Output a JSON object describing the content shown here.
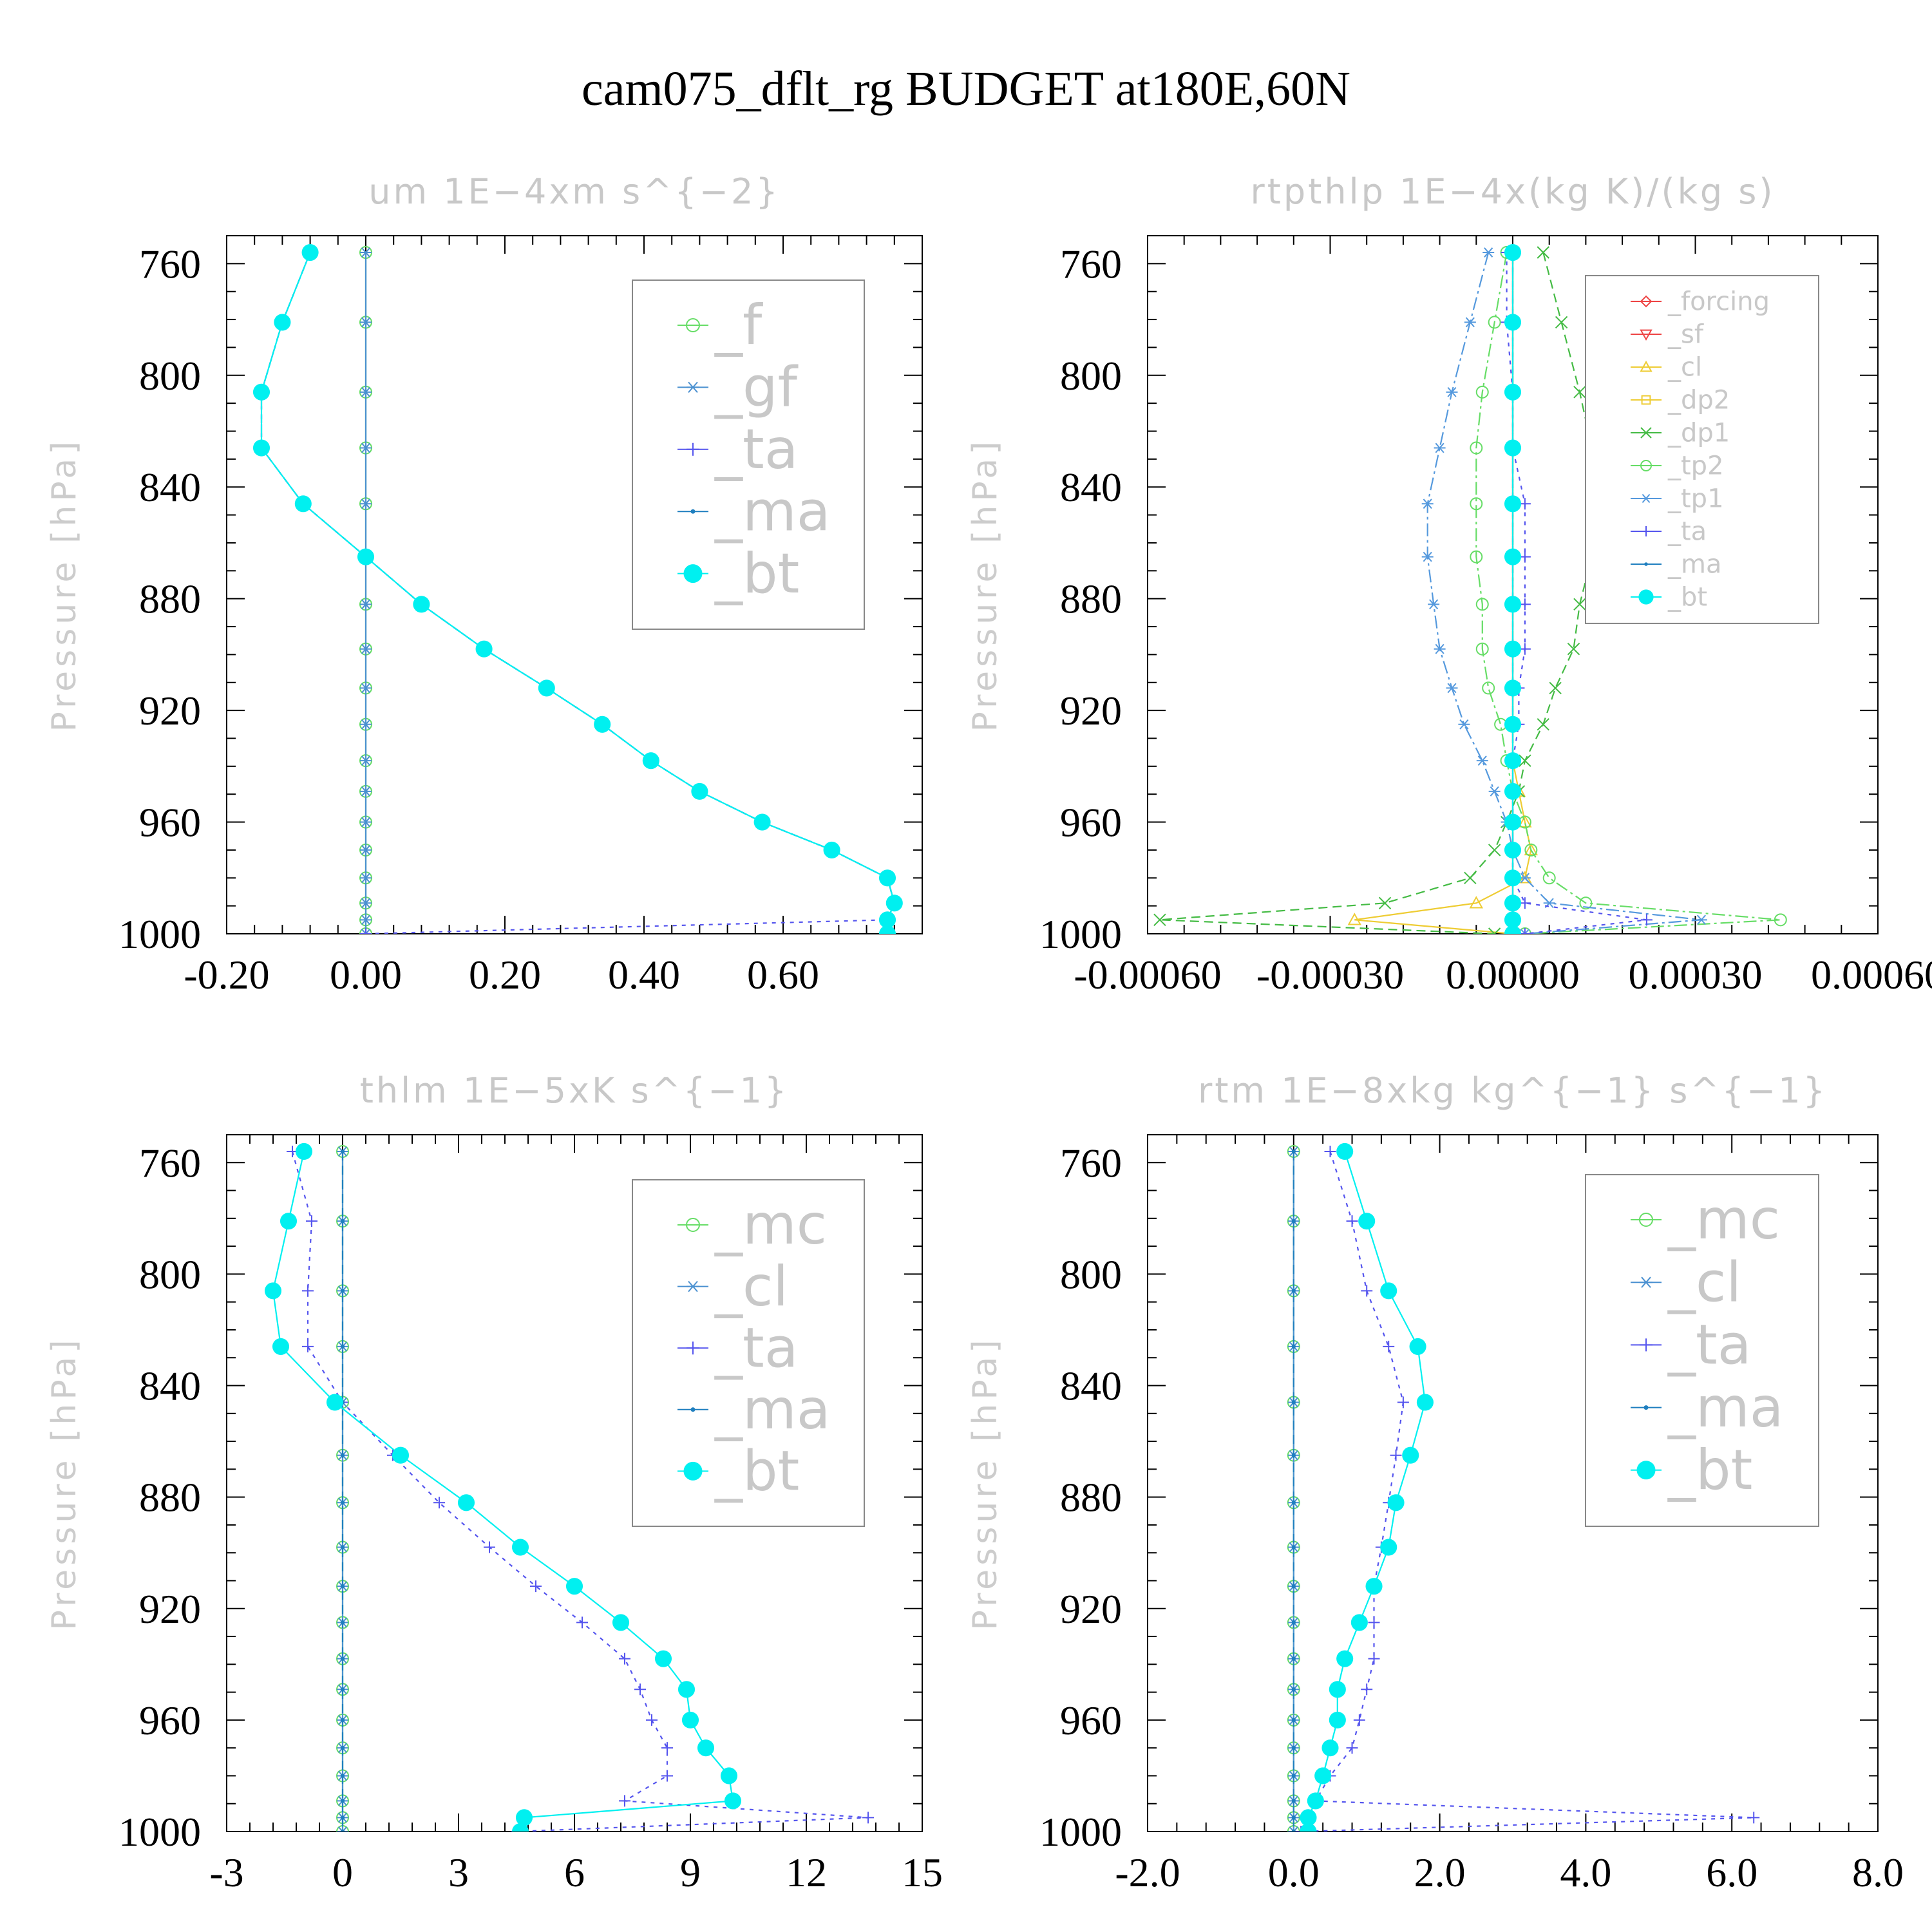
{
  "title": "cam075_dflt_rg  BUDGET at180E,60N",
  "colors": {
    "green": "#66dd66",
    "gf": "#4a90d0",
    "ta": "#5555ee",
    "ma": "#1f7fbf",
    "bt": "#00f0f0",
    "forcing": "#ee4444",
    "sf": "#ee4444",
    "cl_yellow": "#eecc33",
    "dp2": "#eecc33",
    "dp1": "#44bb44",
    "tp2": "#66dd66",
    "tp1": "#5599dd"
  },
  "chart_data": [
    {
      "type": "line",
      "title": "um   1E−4xm s^{−2}",
      "ylabel": "Pressure [hPa]",
      "xlim": [
        -0.2,
        0.8
      ],
      "ylim": [
        750,
        1000
      ],
      "y_reversed": true,
      "xticks": [
        -0.2,
        0.0,
        0.2,
        0.4,
        0.6
      ],
      "xtick_labels": [
        "-0.20",
        "0.00",
        "0.20",
        "0.40",
        "0.60"
      ],
      "yticks": [
        760,
        800,
        840,
        880,
        920,
        960,
        1000
      ],
      "legend": "top-right",
      "legend_size": "large",
      "pressure": [
        756,
        781,
        806,
        826,
        846,
        865,
        882,
        898,
        912,
        925,
        938,
        949,
        960,
        970,
        980,
        989,
        995,
        1000
      ],
      "series": [
        {
          "name": "_f",
          "color_key": "green",
          "marker": "circle-open",
          "dash": "",
          "values": [
            0,
            0,
            0,
            0,
            0,
            0,
            0,
            0,
            0,
            0,
            0,
            0,
            0,
            0,
            0,
            0,
            0,
            0
          ]
        },
        {
          "name": "_gf",
          "color_key": "gf",
          "marker": "star",
          "dash": "",
          "values": [
            0,
            0,
            0,
            0,
            0,
            0,
            0,
            0,
            0,
            0,
            0,
            0,
            0,
            0,
            0,
            0,
            0,
            0
          ]
        },
        {
          "name": "_ta",
          "color_key": "ta",
          "marker": "plus",
          "dash": "6,8",
          "values": [
            -0.08,
            -0.12,
            -0.15,
            -0.15,
            -0.09,
            0.0,
            0.08,
            0.17,
            0.26,
            0.34,
            0.41,
            0.48,
            0.57,
            0.67,
            0.75,
            0.76,
            0.75,
            0.0
          ]
        },
        {
          "name": "_ma",
          "color_key": "ma",
          "marker": "dot",
          "dash": "14,8",
          "values": [
            -0.08,
            -0.12,
            -0.15,
            -0.15,
            -0.09,
            0.0,
            0.08,
            0.17,
            0.26,
            0.34,
            0.41,
            0.48,
            0.57,
            0.67,
            0.75,
            0.76,
            0.75,
            0.75
          ]
        },
        {
          "name": "_bt",
          "color_key": "bt",
          "marker": "filled",
          "dash": "",
          "values": [
            -0.08,
            -0.12,
            -0.15,
            -0.15,
            -0.09,
            0.0,
            0.08,
            0.17,
            0.26,
            0.34,
            0.41,
            0.48,
            0.57,
            0.67,
            0.75,
            0.76,
            0.75,
            0.75
          ]
        }
      ]
    },
    {
      "type": "line",
      "title": "rtpthlp   1E−4x(kg K)/(kg s)",
      "ylabel": "Pressure [hPa]",
      "xlim": [
        -0.0006,
        0.0006
      ],
      "ylim": [
        750,
        1000
      ],
      "y_reversed": true,
      "xticks": [
        -0.0006,
        -0.0003,
        0.0,
        0.0003,
        0.0006
      ],
      "xtick_labels": [
        "-0.00060",
        "-0.00030",
        "0.00000",
        "0.00030",
        "0.00060"
      ],
      "yticks": [
        760,
        800,
        840,
        880,
        920,
        960,
        1000
      ],
      "legend": "top-right",
      "legend_size": "small",
      "pressure": [
        756,
        781,
        806,
        826,
        846,
        865,
        882,
        898,
        912,
        925,
        938,
        949,
        960,
        970,
        980,
        989,
        995,
        1000
      ],
      "series": [
        {
          "name": "_forcing",
          "color_key": "forcing",
          "marker": "diamond",
          "dash": "",
          "values": [
            0,
            0,
            0,
            0,
            0,
            0,
            0,
            0,
            0,
            0,
            0,
            0,
            0,
            0,
            0,
            0,
            0,
            0
          ]
        },
        {
          "name": "_sf",
          "color_key": "sf",
          "marker": "triangle-down",
          "dash": "6,6",
          "values": [
            0,
            0,
            0,
            0,
            0,
            0,
            0,
            0,
            0,
            0,
            0,
            0,
            0,
            0,
            0,
            0,
            0,
            0
          ]
        },
        {
          "name": "_cl",
          "color_key": "cl_yellow",
          "marker": "triangle",
          "dash": "",
          "values": [
            0,
            0,
            0,
            0,
            0,
            0,
            0,
            0,
            0,
            0,
            0,
            1e-05,
            2e-05,
            3e-05,
            2e-05,
            -6e-05,
            -0.00026,
            0
          ]
        },
        {
          "name": "_dp2",
          "color_key": "dp2",
          "marker": "square",
          "dash": "6,8",
          "values": [
            0,
            0,
            0,
            0,
            0,
            0,
            0,
            0,
            0,
            0,
            0,
            0,
            0,
            0,
            0,
            0,
            0,
            0
          ]
        },
        {
          "name": "_dp1",
          "color_key": "dp1",
          "marker": "x",
          "dash": "14,8",
          "values": [
            5e-05,
            8e-05,
            0.00011,
            0.00013,
            0.00015,
            0.00013,
            0.00011,
            0.0001,
            7e-05,
            5e-05,
            2e-05,
            1e-05,
            -1e-05,
            -3e-05,
            -7e-05,
            -0.00021,
            -0.00058,
            -3e-05
          ]
        },
        {
          "name": "_tp2",
          "color_key": "tp2",
          "marker": "circle-open",
          "dash": "20,6,4,6",
          "values": [
            -1e-05,
            -3e-05,
            -5e-05,
            -6e-05,
            -6e-05,
            -6e-05,
            -5e-05,
            -5e-05,
            -4e-05,
            -2e-05,
            -1e-05,
            0,
            2e-05,
            3e-05,
            6e-05,
            0.00012,
            0.00044,
            2e-05
          ]
        },
        {
          "name": "_tp1",
          "color_key": "tp1",
          "marker": "star",
          "dash": "20,6,4,6",
          "values": [
            -4e-05,
            -7e-05,
            -0.0001,
            -0.00012,
            -0.00014,
            -0.00014,
            -0.00013,
            -0.00012,
            -0.0001,
            -8e-05,
            -5e-05,
            -3e-05,
            -1e-05,
            0,
            2e-05,
            6e-05,
            0.00031,
            2e-05
          ]
        },
        {
          "name": "_ta",
          "color_key": "ta",
          "marker": "plus",
          "dash": "6,8",
          "values": [
            -1e-05,
            -1e-05,
            0,
            0,
            2e-05,
            2e-05,
            2e-05,
            2e-05,
            1e-05,
            1e-05,
            0,
            0,
            0,
            0,
            0,
            2e-05,
            0.00022,
            2e-05
          ]
        },
        {
          "name": "_ma",
          "color_key": "ma",
          "marker": "dot",
          "dash": "14,8",
          "values": [
            0,
            0,
            0,
            0,
            0,
            0,
            0,
            0,
            0,
            0,
            0,
            0,
            0,
            0,
            0,
            0,
            0,
            0
          ]
        },
        {
          "name": "_bt",
          "color_key": "bt",
          "marker": "filled",
          "dash": "",
          "values": [
            0,
            0,
            0,
            0,
            0,
            0,
            0,
            0,
            0,
            0,
            0,
            0,
            0,
            0,
            0,
            0,
            0,
            0
          ]
        }
      ]
    },
    {
      "type": "line",
      "title": "thlm   1E−5xK s^{−1}",
      "ylabel": "Pressure [hPa]",
      "xlim": [
        -3,
        15
      ],
      "ylim": [
        750,
        1000
      ],
      "y_reversed": true,
      "xticks": [
        -3,
        0,
        3,
        6,
        9,
        12,
        15
      ],
      "xtick_labels": [
        "-3",
        "0",
        "3",
        "6",
        "9",
        "12",
        "15"
      ],
      "yticks": [
        760,
        800,
        840,
        880,
        920,
        960,
        1000
      ],
      "legend": "top-right",
      "legend_size": "large",
      "pressure": [
        756,
        781,
        806,
        826,
        846,
        865,
        882,
        898,
        912,
        925,
        938,
        949,
        960,
        970,
        980,
        989,
        995,
        1000
      ],
      "series": [
        {
          "name": "_mc",
          "color_key": "green",
          "marker": "circle-open",
          "dash": "",
          "values": [
            0,
            0,
            0,
            0,
            0,
            0,
            0,
            0,
            0,
            0,
            0,
            0,
            0,
            0,
            0,
            0,
            0,
            0
          ]
        },
        {
          "name": "_cl",
          "color_key": "gf",
          "marker": "star",
          "dash": "",
          "values": [
            0,
            0,
            0,
            0,
            0,
            0,
            0,
            0,
            0,
            0,
            0,
            0,
            0,
            0,
            0,
            0,
            0,
            0
          ]
        },
        {
          "name": "_ta",
          "color_key": "ta",
          "marker": "plus",
          "dash": "6,8",
          "values": [
            -1.3,
            -0.8,
            -0.9,
            -0.9,
            0.0,
            1.3,
            2.5,
            3.8,
            5.0,
            6.2,
            7.3,
            7.7,
            8.0,
            8.4,
            8.4,
            7.3,
            13.6,
            4.5
          ]
        },
        {
          "name": "_ma",
          "color_key": "ma",
          "marker": "dot",
          "dash": "14,8",
          "values": [
            0,
            0,
            0,
            0,
            0,
            0,
            0,
            0,
            0,
            0,
            0,
            0,
            0,
            0,
            0,
            0,
            0,
            0
          ]
        },
        {
          "name": "_bt",
          "color_key": "bt",
          "marker": "filled",
          "dash": "",
          "values": [
            -1.0,
            -1.4,
            -1.8,
            -1.6,
            -0.2,
            1.5,
            3.2,
            4.6,
            6.0,
            7.2,
            8.3,
            8.9,
            9.0,
            9.4,
            10.0,
            10.1,
            4.7,
            4.6
          ]
        }
      ]
    },
    {
      "type": "line",
      "title": "rtm   1E−8xkg kg^{−1} s^{−1}",
      "ylabel": "Pressure [hPa]",
      "xlim": [
        -2.0,
        8.0
      ],
      "ylim": [
        750,
        1000
      ],
      "y_reversed": true,
      "xticks": [
        -2.0,
        0.0,
        2.0,
        4.0,
        6.0,
        8.0
      ],
      "xtick_labels": [
        "-2.0",
        "0.0",
        "2.0",
        "4.0",
        "6.0",
        "8.0"
      ],
      "yticks": [
        760,
        800,
        840,
        880,
        920,
        960,
        1000
      ],
      "legend": "top-right",
      "legend_size": "large",
      "pressure": [
        756,
        781,
        806,
        826,
        846,
        865,
        882,
        898,
        912,
        925,
        938,
        949,
        960,
        970,
        980,
        989,
        995,
        1000
      ],
      "series": [
        {
          "name": "_mc",
          "color_key": "green",
          "marker": "circle-open",
          "dash": "",
          "values": [
            0,
            0,
            0,
            0,
            0,
            0,
            0,
            0,
            0,
            0,
            0,
            0,
            0,
            0,
            0,
            0,
            0,
            0
          ]
        },
        {
          "name": "_cl",
          "color_key": "gf",
          "marker": "star",
          "dash": "",
          "values": [
            0,
            0,
            0,
            0,
            0,
            0,
            0,
            0,
            0,
            0,
            0,
            0,
            0,
            0,
            0,
            0,
            0,
            0
          ]
        },
        {
          "name": "_ta",
          "color_key": "ta",
          "marker": "plus",
          "dash": "6,8",
          "values": [
            0.5,
            0.8,
            1.0,
            1.3,
            1.5,
            1.4,
            1.3,
            1.2,
            1.1,
            1.1,
            1.1,
            1.0,
            0.9,
            0.8,
            0.5,
            0.3,
            6.3,
            0.1
          ]
        },
        {
          "name": "_ma",
          "color_key": "ma",
          "marker": "dot",
          "dash": "14,8",
          "values": [
            0,
            0,
            0,
            0,
            0,
            0,
            0,
            0,
            0,
            0,
            0,
            0,
            0,
            0,
            0,
            0,
            0,
            0
          ]
        },
        {
          "name": "_bt",
          "color_key": "bt",
          "marker": "filled",
          "dash": "",
          "values": [
            0.7,
            1.0,
            1.3,
            1.7,
            1.8,
            1.6,
            1.4,
            1.3,
            1.1,
            0.9,
            0.7,
            0.6,
            0.6,
            0.5,
            0.4,
            0.3,
            0.2,
            0.2
          ]
        }
      ]
    }
  ]
}
